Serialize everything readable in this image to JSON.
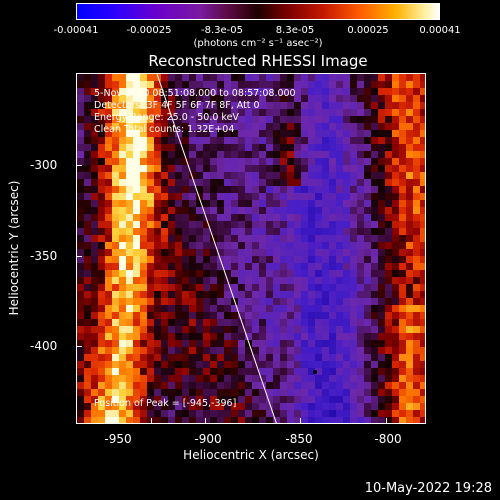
{
  "colorbar": {
    "ticks": [
      "-0.00041",
      "-0.00025",
      "-8.3e-05",
      "8.3e-05",
      "0.00025",
      "0.00041"
    ],
    "units": "(photons cm⁻² s⁻¹ asec⁻²)"
  },
  "title": "Reconstructed RHESSI Image",
  "annotations": [
    "5-Nov-2010 08:51:08.000 to 08:57:08.000",
    "Detectors: 3F 4F 5F 6F 7F 8F, Att 0",
    "Energy Range: 25.0 - 50.0 keV",
    "Clean    Total counts: 1.32E+04"
  ],
  "peak": "Position of Peak = [-945,-396]",
  "axes": {
    "xlabel": "Heliocentric X (arcsec)",
    "ylabel": "Heliocentric Y (arcsec)",
    "xticks": [
      "-950",
      "-900",
      "-850",
      "-800"
    ],
    "yticks": [
      "-300",
      "-350",
      "-400"
    ]
  },
  "timestamp": "10-May-2022 19:28"
}
